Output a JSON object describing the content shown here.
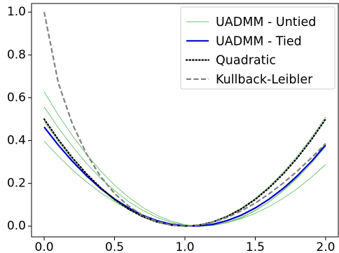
{
  "chart_data": {
    "type": "line",
    "x": [
      0,
      0.1,
      0.2,
      0.3,
      0.4,
      0.5,
      0.6,
      0.7,
      0.8,
      0.9,
      1.0,
      1.1,
      1.2,
      1.3,
      1.4,
      1.5,
      1.6,
      1.7,
      1.8,
      1.9,
      2.0
    ],
    "series": [
      {
        "name": "UADMM - Untied",
        "color": "#6cbf6c",
        "linestyle": "solid",
        "linewidth": 0.9,
        "values": [
          [
            0.627,
            0.52,
            0.423,
            0.336,
            0.259,
            0.192,
            0.135,
            0.088,
            0.051,
            0.024,
            0.007,
            0.0,
            0.003,
            0.016,
            0.039,
            0.072,
            0.115,
            0.168,
            0.231,
            0.304,
            0.387
          ],
          [
            0.557,
            0.46,
            0.373,
            0.294,
            0.225,
            0.166,
            0.115,
            0.074,
            0.041,
            0.018,
            0.005,
            0.0,
            0.005,
            0.018,
            0.041,
            0.074,
            0.115,
            0.166,
            0.225,
            0.294,
            0.373
          ],
          [
            0.49,
            0.396,
            0.312,
            0.238,
            0.174,
            0.12,
            0.076,
            0.042,
            0.018,
            0.004,
            0.0,
            0.006,
            0.022,
            0.048,
            0.084,
            0.13,
            0.186,
            0.252,
            0.328,
            0.414,
            0.51
          ],
          [
            0.397,
            0.327,
            0.263,
            0.207,
            0.157,
            0.114,
            0.078,
            0.049,
            0.027,
            0.011,
            0.002,
            0.0,
            0.005,
            0.016,
            0.035,
            0.06,
            0.092,
            0.131,
            0.176,
            0.229,
            0.288
          ]
        ]
      },
      {
        "name": "UADMM - Tied",
        "color": "#0000cc",
        "linestyle": "solid",
        "linewidth": 2.2,
        "values": [
          [
            0.463,
            0.379,
            0.303,
            0.236,
            0.177,
            0.127,
            0.085,
            0.051,
            0.026,
            0.009,
            0.001,
            0.001,
            0.009,
            0.026,
            0.051,
            0.085,
            0.127,
            0.177,
            0.236,
            0.303,
            0.379
          ]
        ]
      },
      {
        "name": "Quadratic",
        "color": "#000000",
        "linestyle": "dotted",
        "linewidth": 2.2,
        "values": [
          [
            0.5,
            0.405,
            0.32,
            0.245,
            0.18,
            0.125,
            0.08,
            0.045,
            0.02,
            0.005,
            0,
            0.005,
            0.02,
            0.045,
            0.08,
            0.125,
            0.18,
            0.245,
            0.32,
            0.405,
            0.5
          ]
        ]
      },
      {
        "name": "Kullback-Leibler",
        "color": "#808080",
        "linestyle": "dashed",
        "linewidth": 2.2,
        "values": [
          [
            1.0,
            0.67,
            0.478,
            0.339,
            0.233,
            0.153,
            0.094,
            0.05,
            0.022,
            0.005,
            0,
            0.005,
            0.019,
            0.041,
            0.071,
            0.108,
            0.152,
            0.202,
            0.258,
            0.32,
            0.386
          ]
        ]
      }
    ],
    "xlim": [
      -0.09,
      2.09
    ],
    "ylim": [
      -0.05,
      1.04
    ],
    "xticks": [
      {
        "value": 0,
        "label": "0.0"
      },
      {
        "value": 0.5,
        "label": "0.5"
      },
      {
        "value": 1.0,
        "label": "1.0"
      },
      {
        "value": 1.5,
        "label": "1.5"
      },
      {
        "value": 2.0,
        "label": "2.0"
      }
    ],
    "yticks": [
      {
        "value": 0,
        "label": "0.0"
      },
      {
        "value": 0.2,
        "label": "0.2"
      },
      {
        "value": 0.4,
        "label": "0.4"
      },
      {
        "value": 0.6,
        "label": "0.6"
      },
      {
        "value": 0.8,
        "label": "0.8"
      },
      {
        "value": 1.0,
        "label": "1.0"
      }
    ],
    "legend": "upper right"
  }
}
